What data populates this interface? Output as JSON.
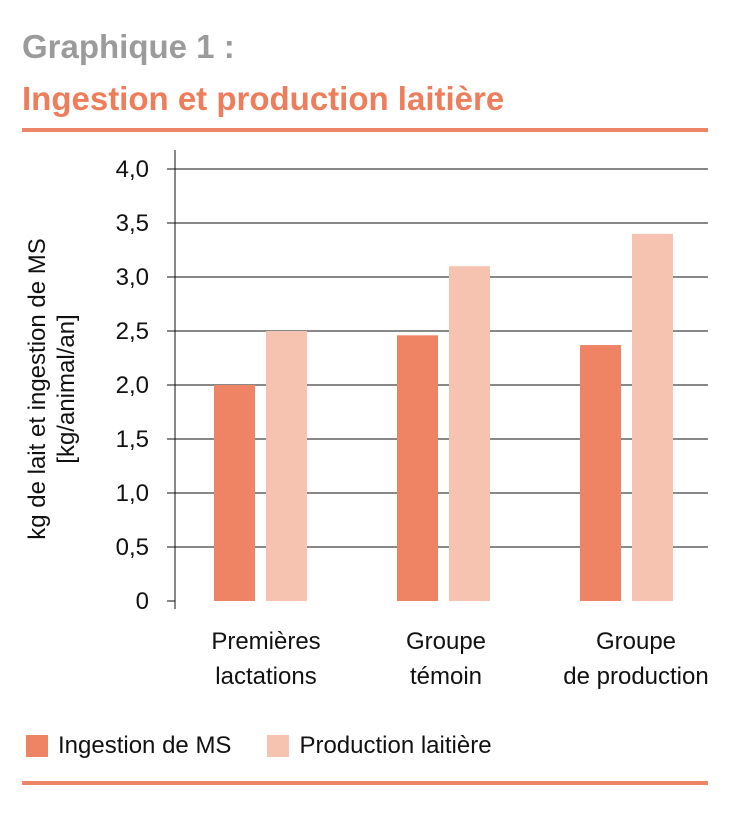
{
  "header": {
    "title_line1": "Graphique 1 :",
    "title_line2": "Ingestion et production laitière"
  },
  "colors": {
    "accent": "#ee7d5b",
    "title_gray": "#9b9b9b",
    "series_1": "#ee8464",
    "series_2": "#f6c3b1"
  },
  "chart_data": {
    "type": "bar",
    "title": "Ingestion et production laitière",
    "ylabel_line1": "kg de lait et ingestion de MS",
    "ylabel_line2": "[kg/animal/an]",
    "xlabel": "",
    "ylim": [
      0,
      4.0
    ],
    "yticks": [
      "0",
      "0,5",
      "1,0",
      "1,5",
      "2,0",
      "2,5",
      "3,0",
      "3,5",
      "4,0"
    ],
    "grid": true,
    "legend_position": "bottom",
    "categories": [
      [
        "Premières",
        "lactations"
      ],
      [
        "Groupe",
        "témoin"
      ],
      [
        "Groupe",
        "de production"
      ]
    ],
    "series": [
      {
        "name": "Ingestion de MS",
        "color": "#ee8464",
        "values": [
          2.0,
          2.46,
          2.37
        ]
      },
      {
        "name": "Production laitière",
        "color": "#f6c3b1",
        "values": [
          2.5,
          3.1,
          3.4
        ]
      }
    ]
  }
}
